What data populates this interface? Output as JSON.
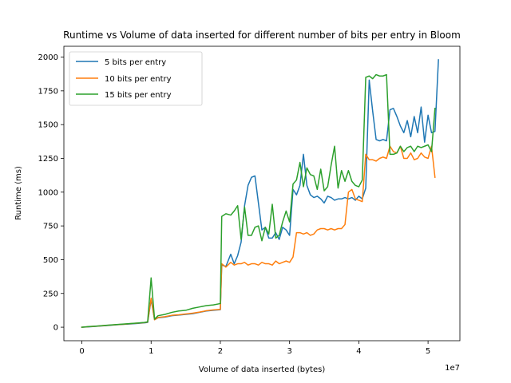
{
  "chart_data": {
    "type": "line",
    "title": "Runtime vs Volume of data inserted for different number of bits per entry in Bloom",
    "xlabel": "Volume of data inserted (bytes)",
    "ylabel": "Runtime (ms)",
    "x_offset_label": "1e7",
    "xlim": [
      -2600000,
      54600000
    ],
    "ylim": [
      -100,
      2080
    ],
    "xticks": [
      0,
      10000000,
      20000000,
      30000000,
      40000000,
      50000000
    ],
    "xtick_labels": [
      "0",
      "1",
      "2",
      "3",
      "4",
      "5"
    ],
    "yticks": [
      0,
      250,
      500,
      750,
      1000,
      1250,
      1500,
      1750,
      2000
    ],
    "ytick_labels": [
      "0",
      "250",
      "500",
      "750",
      "1000",
      "1250",
      "1500",
      "1750",
      "2000"
    ],
    "legend_position": "top-left",
    "grid": false,
    "series": [
      {
        "name": "5 bits per entry",
        "color": "#1f77b4",
        "points": [
          [
            0,
            0
          ],
          [
            1000000,
            3
          ],
          [
            2000000,
            6
          ],
          [
            3000000,
            10
          ],
          [
            4000000,
            14
          ],
          [
            5000000,
            18
          ],
          [
            6000000,
            21
          ],
          [
            7000000,
            24
          ],
          [
            8000000,
            28
          ],
          [
            9000000,
            32
          ],
          [
            9500000,
            35
          ],
          [
            10000000,
            205
          ],
          [
            10500000,
            55
          ],
          [
            11000000,
            70
          ],
          [
            12000000,
            75
          ],
          [
            13000000,
            85
          ],
          [
            14000000,
            90
          ],
          [
            15000000,
            95
          ],
          [
            16000000,
            100
          ],
          [
            17000000,
            110
          ],
          [
            18000000,
            120
          ],
          [
            19000000,
            125
          ],
          [
            20000000,
            130
          ],
          [
            20200000,
            460
          ],
          [
            20800000,
            450
          ],
          [
            21500000,
            540
          ],
          [
            22000000,
            470
          ],
          [
            22500000,
            530
          ],
          [
            23000000,
            630
          ],
          [
            23500000,
            900
          ],
          [
            24000000,
            1050
          ],
          [
            24500000,
            1110
          ],
          [
            25000000,
            1120
          ],
          [
            25500000,
            920
          ],
          [
            26000000,
            720
          ],
          [
            26500000,
            740
          ],
          [
            27000000,
            660
          ],
          [
            27500000,
            660
          ],
          [
            28000000,
            700
          ],
          [
            28500000,
            650
          ],
          [
            29000000,
            740
          ],
          [
            29500000,
            720
          ],
          [
            30000000,
            680
          ],
          [
            30500000,
            1020
          ],
          [
            31000000,
            980
          ],
          [
            31500000,
            1050
          ],
          [
            32000000,
            1280
          ],
          [
            32500000,
            1050
          ],
          [
            33000000,
            980
          ],
          [
            33500000,
            960
          ],
          [
            34000000,
            970
          ],
          [
            34500000,
            950
          ],
          [
            35000000,
            920
          ],
          [
            35500000,
            970
          ],
          [
            36000000,
            960
          ],
          [
            36500000,
            940
          ],
          [
            37000000,
            950
          ],
          [
            37500000,
            950
          ],
          [
            38000000,
            960
          ],
          [
            38500000,
            950
          ],
          [
            39000000,
            960
          ],
          [
            39500000,
            940
          ],
          [
            40000000,
            970
          ],
          [
            40500000,
            950
          ],
          [
            41000000,
            1030
          ],
          [
            41500000,
            1830
          ],
          [
            42000000,
            1600
          ],
          [
            42500000,
            1390
          ],
          [
            43000000,
            1380
          ],
          [
            43500000,
            1390
          ],
          [
            44000000,
            1380
          ],
          [
            44500000,
            1610
          ],
          [
            45000000,
            1620
          ],
          [
            45500000,
            1560
          ],
          [
            46000000,
            1490
          ],
          [
            46500000,
            1440
          ],
          [
            47000000,
            1530
          ],
          [
            47500000,
            1410
          ],
          [
            48000000,
            1560
          ],
          [
            48500000,
            1440
          ],
          [
            49000000,
            1630
          ],
          [
            49500000,
            1370
          ],
          [
            50000000,
            1570
          ],
          [
            50500000,
            1440
          ],
          [
            51000000,
            1450
          ],
          [
            51500000,
            1980
          ]
        ]
      },
      {
        "name": "10 bits per entry",
        "color": "#ff7f0e",
        "points": [
          [
            0,
            0
          ],
          [
            1000000,
            4
          ],
          [
            2000000,
            7
          ],
          [
            3000000,
            11
          ],
          [
            4000000,
            15
          ],
          [
            5000000,
            19
          ],
          [
            6000000,
            22
          ],
          [
            7000000,
            26
          ],
          [
            8000000,
            30
          ],
          [
            9000000,
            34
          ],
          [
            9500000,
            38
          ],
          [
            10000000,
            215
          ],
          [
            10500000,
            55
          ],
          [
            11000000,
            72
          ],
          [
            12000000,
            78
          ],
          [
            13000000,
            88
          ],
          [
            14000000,
            92
          ],
          [
            15000000,
            98
          ],
          [
            16000000,
            104
          ],
          [
            17000000,
            112
          ],
          [
            18000000,
            122
          ],
          [
            19000000,
            128
          ],
          [
            20000000,
            132
          ],
          [
            20200000,
            470
          ],
          [
            20800000,
            445
          ],
          [
            21500000,
            480
          ],
          [
            22000000,
            460
          ],
          [
            22500000,
            470
          ],
          [
            23000000,
            470
          ],
          [
            23500000,
            480
          ],
          [
            24000000,
            460
          ],
          [
            24500000,
            470
          ],
          [
            25000000,
            470
          ],
          [
            25500000,
            460
          ],
          [
            26000000,
            480
          ],
          [
            26500000,
            470
          ],
          [
            27000000,
            470
          ],
          [
            27500000,
            460
          ],
          [
            28000000,
            490
          ],
          [
            28500000,
            470
          ],
          [
            29000000,
            480
          ],
          [
            29500000,
            490
          ],
          [
            30000000,
            480
          ],
          [
            30500000,
            520
          ],
          [
            31000000,
            700
          ],
          [
            31500000,
            700
          ],
          [
            32000000,
            690
          ],
          [
            32500000,
            700
          ],
          [
            33000000,
            680
          ],
          [
            33500000,
            690
          ],
          [
            34000000,
            720
          ],
          [
            34500000,
            730
          ],
          [
            35000000,
            730
          ],
          [
            35500000,
            720
          ],
          [
            36000000,
            730
          ],
          [
            36500000,
            720
          ],
          [
            37000000,
            730
          ],
          [
            37500000,
            730
          ],
          [
            38000000,
            760
          ],
          [
            38500000,
            1000
          ],
          [
            39000000,
            1020
          ],
          [
            39500000,
            950
          ],
          [
            40000000,
            940
          ],
          [
            40500000,
            930
          ],
          [
            41000000,
            1280
          ],
          [
            41500000,
            1240
          ],
          [
            42000000,
            1240
          ],
          [
            42500000,
            1230
          ],
          [
            43000000,
            1250
          ],
          [
            43500000,
            1260
          ],
          [
            44000000,
            1250
          ],
          [
            44500000,
            1340
          ],
          [
            45000000,
            1300
          ],
          [
            45500000,
            1290
          ],
          [
            46000000,
            1340
          ],
          [
            46500000,
            1250
          ],
          [
            47000000,
            1250
          ],
          [
            47500000,
            1290
          ],
          [
            48000000,
            1240
          ],
          [
            48500000,
            1250
          ],
          [
            49000000,
            1290
          ],
          [
            49500000,
            1260
          ],
          [
            50000000,
            1250
          ],
          [
            50500000,
            1340
          ],
          [
            51000000,
            1110
          ]
        ]
      },
      {
        "name": "15 bits per entry",
        "color": "#2ca02c",
        "points": [
          [
            0,
            0
          ],
          [
            1000000,
            5
          ],
          [
            2000000,
            8
          ],
          [
            3000000,
            12
          ],
          [
            4000000,
            16
          ],
          [
            5000000,
            20
          ],
          [
            6000000,
            23
          ],
          [
            7000000,
            27
          ],
          [
            8000000,
            31
          ],
          [
            9000000,
            35
          ],
          [
            9500000,
            40
          ],
          [
            10000000,
            365
          ],
          [
            10500000,
            60
          ],
          [
            11000000,
            85
          ],
          [
            12000000,
            95
          ],
          [
            13000000,
            110
          ],
          [
            14000000,
            120
          ],
          [
            15000000,
            125
          ],
          [
            16000000,
            140
          ],
          [
            17000000,
            150
          ],
          [
            18000000,
            160
          ],
          [
            19000000,
            165
          ],
          [
            20000000,
            175
          ],
          [
            20200000,
            820
          ],
          [
            20800000,
            840
          ],
          [
            21500000,
            830
          ],
          [
            22000000,
            860
          ],
          [
            22500000,
            900
          ],
          [
            23000000,
            650
          ],
          [
            23500000,
            890
          ],
          [
            24000000,
            680
          ],
          [
            24500000,
            680
          ],
          [
            25000000,
            740
          ],
          [
            25500000,
            750
          ],
          [
            26000000,
            640
          ],
          [
            26500000,
            740
          ],
          [
            27000000,
            690
          ],
          [
            27500000,
            910
          ],
          [
            28000000,
            660
          ],
          [
            28500000,
            680
          ],
          [
            29000000,
            780
          ],
          [
            29500000,
            860
          ],
          [
            30000000,
            780
          ],
          [
            30500000,
            1060
          ],
          [
            31000000,
            1090
          ],
          [
            31500000,
            1220
          ],
          [
            32000000,
            1040
          ],
          [
            32500000,
            1180
          ],
          [
            33000000,
            1130
          ],
          [
            33500000,
            1120
          ],
          [
            34000000,
            1020
          ],
          [
            34500000,
            1170
          ],
          [
            35000000,
            1010
          ],
          [
            35500000,
            1040
          ],
          [
            36000000,
            1200
          ],
          [
            36500000,
            1340
          ],
          [
            37000000,
            1030
          ],
          [
            37500000,
            1160
          ],
          [
            38000000,
            1080
          ],
          [
            38500000,
            1160
          ],
          [
            39000000,
            1080
          ],
          [
            39500000,
            1050
          ],
          [
            40000000,
            1040
          ],
          [
            40500000,
            1090
          ],
          [
            41000000,
            1850
          ],
          [
            41500000,
            1860
          ],
          [
            42000000,
            1840
          ],
          [
            42500000,
            1870
          ],
          [
            43000000,
            1860
          ],
          [
            43500000,
            1860
          ],
          [
            44000000,
            1870
          ],
          [
            44500000,
            1280
          ],
          [
            45000000,
            1280
          ],
          [
            45500000,
            1290
          ],
          [
            46000000,
            1340
          ],
          [
            46500000,
            1300
          ],
          [
            47000000,
            1330
          ],
          [
            47500000,
            1340
          ],
          [
            48000000,
            1300
          ],
          [
            48500000,
            1340
          ],
          [
            49000000,
            1330
          ],
          [
            49500000,
            1340
          ],
          [
            50000000,
            1350
          ],
          [
            50500000,
            1300
          ],
          [
            51000000,
            1620
          ]
        ]
      }
    ]
  }
}
